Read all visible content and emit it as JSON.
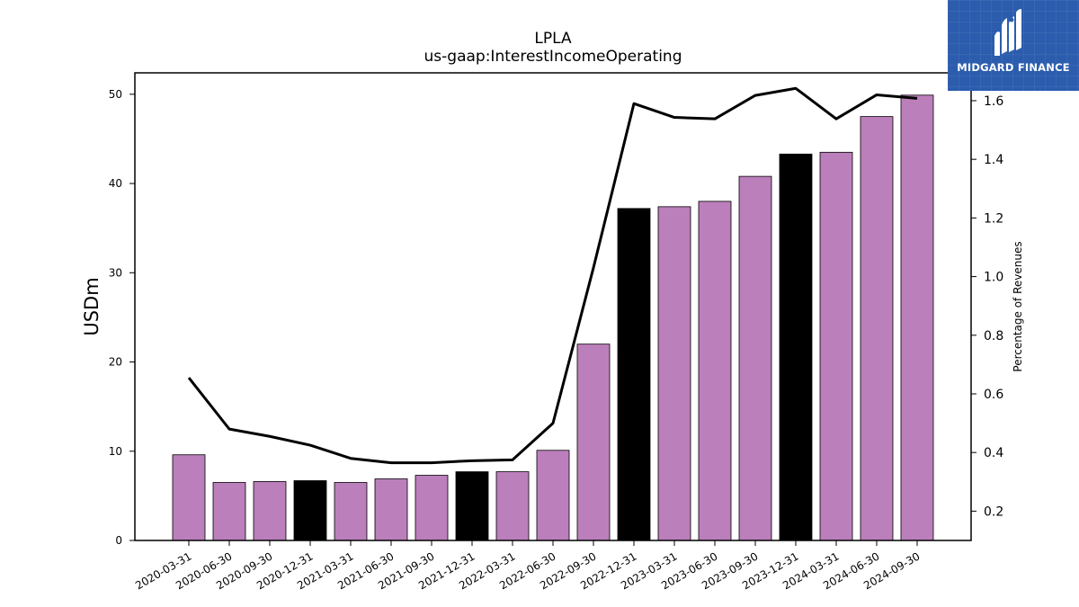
{
  "logo": {
    "text": "MIDGARD FINANCE",
    "icon": "midgard-logo-icon"
  },
  "chart_data": {
    "type": "bar",
    "title": "LPLA",
    "subtitle": "us-gaap:InterestIncomeOperating",
    "ylabel": "USDm",
    "ylabel_right": "Percentage of Revenues",
    "ylim": [
      0,
      52.4
    ],
    "ylim_right": [
      0.1,
      1.695
    ],
    "yticks": [
      0,
      10,
      20,
      30,
      40,
      50
    ],
    "yticks_right": [
      0.2,
      0.4,
      0.6,
      0.8,
      1.0,
      1.2,
      1.4,
      1.6
    ],
    "categories": [
      "2020-03-31",
      "2020-06-30",
      "2020-09-30",
      "2020-12-31",
      "2021-03-31",
      "2021-06-30",
      "2021-09-30",
      "2021-12-31",
      "2022-03-31",
      "2022-06-30",
      "2022-09-30",
      "2022-12-31",
      "2023-03-31",
      "2023-06-30",
      "2023-09-30",
      "2023-12-31",
      "2024-03-31",
      "2024-06-30",
      "2024-09-30"
    ],
    "series": [
      {
        "type": "bar",
        "values": [
          9.6,
          6.5,
          6.6,
          6.7,
          6.5,
          6.9,
          7.3,
          7.7,
          7.7,
          10.1,
          22.0,
          37.2,
          37.4,
          38.0,
          40.8,
          43.3,
          43.5,
          47.5,
          49.9
        ],
        "colors": [
          "#bb7fbb",
          "#bb7fbb",
          "#bb7fbb",
          "#000000",
          "#bb7fbb",
          "#bb7fbb",
          "#bb7fbb",
          "#000000",
          "#bb7fbb",
          "#bb7fbb",
          "#bb7fbb",
          "#000000",
          "#bb7fbb",
          "#bb7fbb",
          "#bb7fbb",
          "#000000",
          "#bb7fbb",
          "#bb7fbb",
          "#bb7fbb"
        ]
      },
      {
        "type": "line",
        "axis": "right",
        "color": "#000000",
        "values": [
          0.655,
          0.48,
          0.455,
          0.425,
          0.38,
          0.365,
          0.365,
          0.372,
          0.375,
          0.5,
          1.03,
          1.59,
          1.543,
          1.538,
          1.618,
          1.642,
          1.538,
          1.62,
          1.608
        ]
      }
    ],
    "grid": false,
    "colors": {
      "bar": "#bb7fbb",
      "bar_highlight": "#000000",
      "line": "#000000"
    }
  }
}
